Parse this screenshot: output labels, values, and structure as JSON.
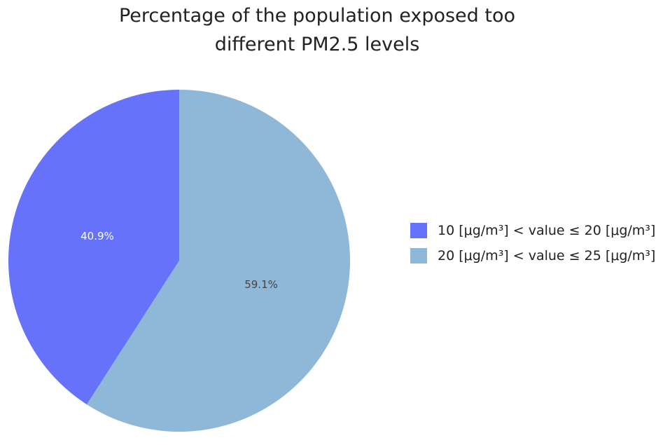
{
  "chart_data": {
    "type": "pie",
    "title_lines": [
      "Percentage of the population exposed too",
      "different PM2.5 levels"
    ],
    "slices": [
      {
        "label": "10 [μg/m³] < value ≤ 20 [μg/m³]",
        "value": 40.9,
        "display": "40.9%",
        "color": "#6672fa",
        "label_color": "#ffffff"
      },
      {
        "label": "20 [μg/m³] < value ≤ 25 [μg/m³]",
        "value": 59.1,
        "display": "59.1%",
        "color": "#8fb8d8",
        "label_color": "#444444"
      }
    ],
    "start_angle_deg": 0,
    "direction": "counterclockwise",
    "legend_position": "right"
  }
}
